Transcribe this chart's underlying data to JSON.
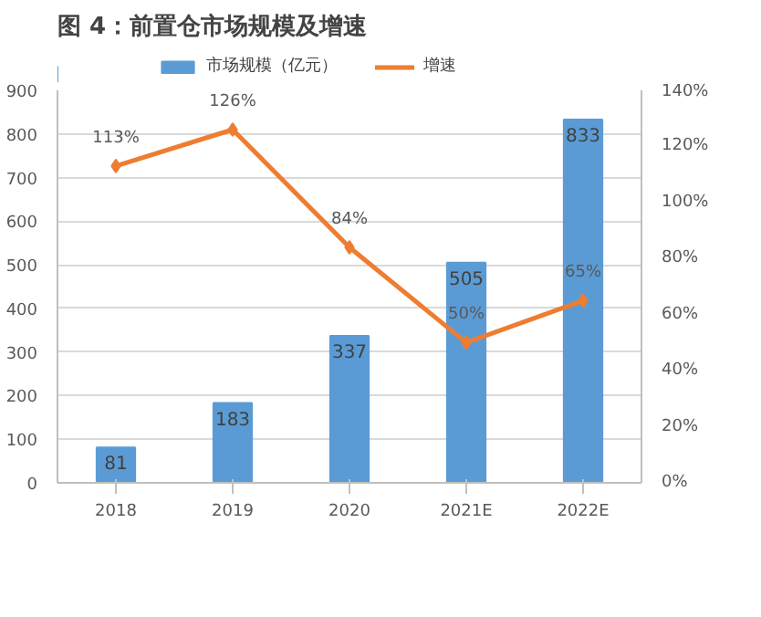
{
  "chart_data": {
    "type": "bar",
    "title": "图 4：前置仓市场规模及增速",
    "categories": [
      "2018",
      "2019",
      "2020",
      "2021E",
      "2022E"
    ],
    "series": [
      {
        "name": "市场规模（亿元）",
        "color": "#5b9bd5",
        "values": [
          81,
          183,
          337,
          505,
          833
        ]
      },
      {
        "name": "增速",
        "type": "line",
        "axis": "y2",
        "color": "#ed7d31",
        "values": [
          113,
          126,
          84,
          50,
          65
        ],
        "value_labels": [
          "113%",
          "126%",
          "84%",
          "50%",
          "65%"
        ]
      }
    ],
    "ylim": [
      0,
      900
    ],
    "yticks": [
      0,
      100,
      200,
      300,
      400,
      500,
      600,
      700,
      800,
      900
    ],
    "y2lim": [
      0,
      140
    ],
    "y2ticks": [
      {
        "value": 0,
        "label": "0%"
      },
      {
        "value": 20,
        "label": "20%"
      },
      {
        "value": 40,
        "label": "40%"
      },
      {
        "value": 60,
        "label": "60%"
      },
      {
        "value": 80,
        "label": "80%"
      },
      {
        "value": 100,
        "label": "100%"
      },
      {
        "value": 120,
        "label": "120%"
      },
      {
        "value": 140,
        "label": "140%"
      }
    ],
    "grid": "y",
    "legend": "top",
    "marker": "diamond",
    "line_style": "solid",
    "data_labels": true
  }
}
